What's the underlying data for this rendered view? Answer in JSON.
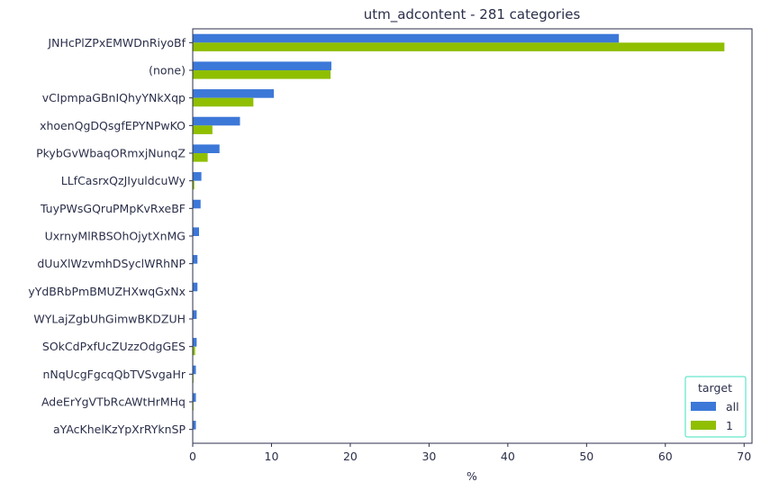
{
  "chart_data": {
    "type": "bar",
    "orientation": "horizontal",
    "title": "utm_adcontent - 281 categories",
    "xlabel": "%",
    "ylabel": "",
    "xlim": [
      0,
      71
    ],
    "xticks": [
      0,
      10,
      20,
      30,
      40,
      50,
      60,
      70
    ],
    "grid": false,
    "categories": [
      "JNHcPlZPxEMWDnRiyoBf",
      "(none)",
      "vCIpmpaGBnIQhyYNkXqp",
      "xhoenQgDQsgfEPYNPwKO",
      "PkybGvWbaqORmxjNunqZ",
      "LLfCasrxQzJIyuldcuWy",
      "TuyPWsGQruPMpKvRxeBF",
      "UxrnyMlRBSOhOjytXnMG",
      "dUuXlWzvmhDSyclWRhNP",
      "yYdBRbPmBMUZHXwqGxNx",
      "WYLajZgbUhGimwBKDZUH",
      "SOkCdPxfUcZUzzOdgGES",
      "nNqUcgFgcqQbTVSvgaHr",
      "AdeErYgVTbRcAWtHrMHq",
      "aYAcKhelKzYpXrRYknSP"
    ],
    "series": [
      {
        "name": "all",
        "color": "#3c78d8",
        "values": [
          54.1,
          17.6,
          10.3,
          6.0,
          3.4,
          1.1,
          1.0,
          0.8,
          0.6,
          0.6,
          0.5,
          0.5,
          0.4,
          0.4,
          0.4
        ]
      },
      {
        "name": "1",
        "color": "#8fbf00",
        "values": [
          67.5,
          17.5,
          7.7,
          2.5,
          1.9,
          0.2,
          0.0,
          0.0,
          0.0,
          0.0,
          0.0,
          0.3,
          0.1,
          0.1,
          0.0
        ]
      }
    ],
    "legend": {
      "title": "target",
      "placement": "bottom-right",
      "border_color": "#40e0c0"
    },
    "axis_color": "#2b2f4a"
  }
}
